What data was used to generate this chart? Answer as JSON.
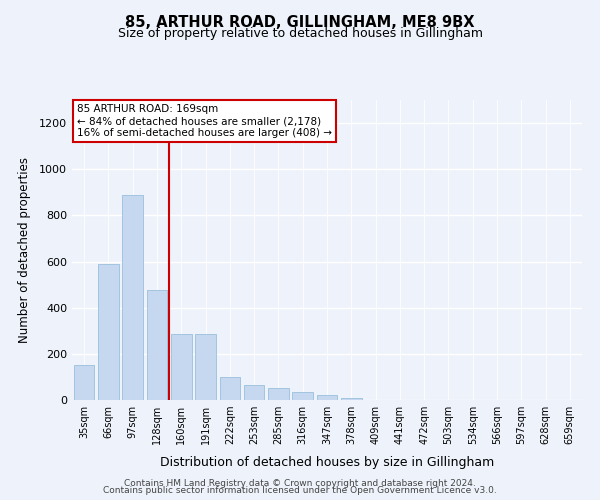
{
  "title": "85, ARTHUR ROAD, GILLINGHAM, ME8 9BX",
  "subtitle": "Size of property relative to detached houses in Gillingham",
  "xlabel": "Distribution of detached houses by size in Gillingham",
  "ylabel": "Number of detached properties",
  "bar_color": "#c5d8f0",
  "bar_edge_color": "#8cb8d8",
  "background_color": "#eef2fa",
  "grid_color": "#ffffff",
  "vline_color": "#cc0000",
  "annotation_box_color": "#cc0000",
  "annotation_line1": "85 ARTHUR ROAD: 169sqm",
  "annotation_line2": "← 84% of detached houses are smaller (2,178)",
  "annotation_line3": "16% of semi-detached houses are larger (408) →",
  "categories": [
    "35sqm",
    "66sqm",
    "97sqm",
    "128sqm",
    "160sqm",
    "191sqm",
    "222sqm",
    "253sqm",
    "285sqm",
    "316sqm",
    "347sqm",
    "378sqm",
    "409sqm",
    "441sqm",
    "472sqm",
    "503sqm",
    "534sqm",
    "566sqm",
    "597sqm",
    "628sqm",
    "659sqm"
  ],
  "values": [
    150,
    590,
    890,
    475,
    285,
    285,
    100,
    65,
    50,
    35,
    20,
    10,
    0,
    0,
    0,
    0,
    0,
    0,
    0,
    0,
    0
  ],
  "ylim": [
    0,
    1300
  ],
  "yticks": [
    0,
    200,
    400,
    600,
    800,
    1000,
    1200
  ],
  "vline_pos": 3.5,
  "footer_line1": "Contains HM Land Registry data © Crown copyright and database right 2024.",
  "footer_line2": "Contains public sector information licensed under the Open Government Licence v3.0."
}
